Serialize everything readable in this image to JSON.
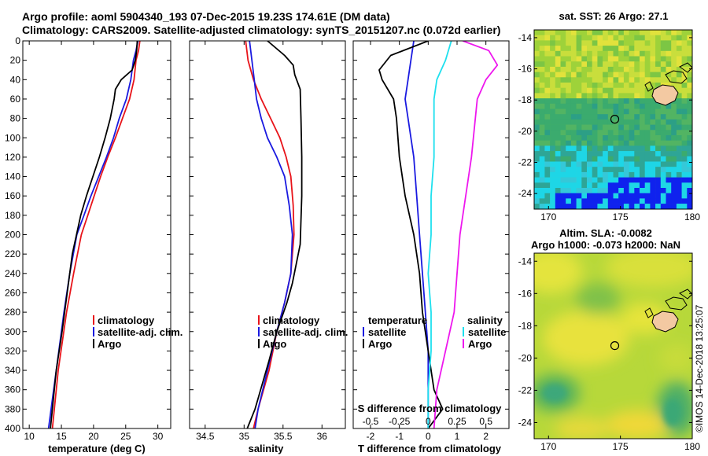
{
  "header": {
    "title_line1": "Argo profile: aoml 5904340_193 07-Dec-2015 19.23S 174.61E (DM data)",
    "title_line2": "Climatology: CARS2009. Satellite-adjusted climatology: synTS_20151207.nc (0.072d earlier)"
  },
  "colors": {
    "climatology": "#e8141a",
    "satellite": "#1a1ae0",
    "argo": "#000000",
    "s_climatology": "#ee17ee",
    "s_satellite": "#1ee0ee"
  },
  "chart_data": [
    {
      "type": "line",
      "id": "temperature",
      "xlabel": "temperature (deg C)",
      "ylabel": "",
      "xlim": [
        9,
        32
      ],
      "ylim": [
        400,
        0
      ],
      "xticks": [
        10,
        15,
        20,
        25,
        30
      ],
      "yticks": [
        0,
        20,
        40,
        60,
        80,
        100,
        120,
        140,
        160,
        180,
        200,
        220,
        240,
        260,
        280,
        300,
        320,
        340,
        360,
        380,
        400
      ],
      "legend": [
        "climatology",
        "satellite-adj. clim.",
        "Argo"
      ],
      "legend_position": "lower-right",
      "series": [
        {
          "name": "climatology",
          "x": [
            27.2,
            27.0,
            26.6,
            26.3,
            25.6,
            24.5,
            23.4,
            22.2,
            21.1,
            20.1,
            19.1,
            18.1,
            16.9,
            15.8,
            14.5,
            13.6
          ],
          "y": [
            0,
            10,
            20,
            40,
            60,
            80,
            100,
            120,
            140,
            160,
            180,
            200,
            240,
            280,
            340,
            400
          ]
        },
        {
          "name": "satellite-adj. clim.",
          "x": [
            26.9,
            26.6,
            26.2,
            25.8,
            25.1,
            24.0,
            23.1,
            22.0,
            20.8,
            19.6,
            18.5,
            17.4,
            16.3,
            15.4,
            14.6,
            13.8,
            13.0
          ],
          "y": [
            0,
            10,
            20,
            40,
            60,
            80,
            100,
            120,
            140,
            160,
            180,
            200,
            240,
            280,
            320,
            360,
            400
          ]
        },
        {
          "name": "Argo",
          "x": [
            26.8,
            26.7,
            26.5,
            26.0,
            24.3,
            23.4,
            23.2,
            22.6,
            21.8,
            20.9,
            19.9,
            18.9,
            18.0,
            16.7,
            15.9,
            15.1,
            14.2,
            13.3
          ],
          "y": [
            0,
            10,
            20,
            30,
            40,
            50,
            60,
            80,
            100,
            120,
            140,
            160,
            180,
            220,
            260,
            300,
            340,
            400
          ]
        }
      ]
    },
    {
      "type": "line",
      "id": "salinity",
      "xlabel": "salinity",
      "ylabel": "",
      "xlim": [
        34.3,
        36.3
      ],
      "ylim": [
        400,
        0
      ],
      "xticks": [
        34.5,
        35,
        35.5,
        36
      ],
      "xtick_labels": [
        "34.5",
        "35",
        "35.5",
        "36"
      ],
      "legend": [
        "climatology",
        "satellite-adj. clim.",
        "Argo"
      ],
      "legend_position": "lower-right",
      "series": [
        {
          "name": "climatology",
          "x": [
            35.02,
            35.05,
            35.12,
            35.22,
            35.34,
            35.46,
            35.54,
            35.6,
            35.63,
            35.64,
            35.6,
            35.52,
            35.42,
            35.32,
            35.18,
            35.12
          ],
          "y": [
            0,
            20,
            40,
            60,
            80,
            100,
            120,
            140,
            170,
            200,
            240,
            270,
            300,
            340,
            380,
            400
          ]
        },
        {
          "name": "satellite-adj. clim.",
          "x": [
            35.07,
            35.1,
            35.13,
            35.16,
            35.22,
            35.3,
            35.42,
            35.52,
            35.58,
            35.62,
            35.6,
            35.52,
            35.42,
            35.3,
            35.18,
            35.14
          ],
          "y": [
            0,
            20,
            40,
            60,
            80,
            100,
            120,
            140,
            170,
            200,
            240,
            270,
            300,
            340,
            380,
            400
          ]
        },
        {
          "name": "Argo",
          "x": [
            35.3,
            35.52,
            35.63,
            35.65,
            35.72,
            35.73,
            35.74,
            35.74,
            35.72,
            35.62,
            35.55,
            35.42,
            35.32,
            35.14,
            35.04
          ],
          "y": [
            0,
            15,
            25,
            35,
            50,
            80,
            120,
            160,
            210,
            250,
            270,
            300,
            330,
            380,
            400
          ]
        }
      ]
    },
    {
      "type": "line",
      "id": "difference",
      "xlabel": "T difference from climatology",
      "s_axis_label": "S difference from climatology",
      "ylabel": "",
      "xlim": [
        -2.6,
        2.8
      ],
      "ylim": [
        400,
        0
      ],
      "xticks": [
        -2,
        -1,
        0,
        1,
        2
      ],
      "s_xticks": [
        -0.5,
        -0.25,
        0,
        0.25,
        0.5
      ],
      "s_xtick_labels": [
        "-0.5",
        "-0.25",
        "0",
        "0.25",
        "0.5"
      ],
      "legend_temperature_title": "temperature",
      "legend_salinity_title": "salinity",
      "legend_temperature": [
        "satellite",
        "Argo"
      ],
      "legend_salinity": [
        "satellite",
        "Argo"
      ],
      "legend_position": "lower",
      "series": [
        {
          "name": "T satellite",
          "x": [
            -0.5,
            -0.6,
            -0.7,
            -0.8,
            -0.7,
            -0.5,
            -0.4,
            -0.3,
            -0.2,
            -0.1,
            0.0,
            0.0,
            0.0
          ],
          "y": [
            0,
            20,
            40,
            60,
            80,
            120,
            160,
            200,
            240,
            280,
            320,
            360,
            400
          ]
        },
        {
          "name": "T Argo",
          "x": [
            0.0,
            -1.3,
            -1.7,
            -1.6,
            -1.2,
            -1.1,
            -1.0,
            -0.8,
            -0.5,
            -0.3,
            -0.2,
            0.0,
            0.2,
            0.5,
            0.0
          ],
          "y": [
            0,
            15,
            30,
            40,
            60,
            80,
            120,
            160,
            200,
            240,
            280,
            320,
            360,
            380,
            400
          ]
        },
        {
          "name": "S satellite",
          "x": [
            0.8,
            0.6,
            0.3,
            0.2,
            0.2,
            0.2,
            0.1,
            0.1,
            0.0,
            0.1,
            0.1,
            0.0,
            0.0
          ],
          "y": [
            0,
            20,
            40,
            60,
            80,
            120,
            160,
            200,
            240,
            280,
            320,
            360,
            400
          ]
        },
        {
          "name": "S Argo",
          "x": [
            1.2,
            2.1,
            2.4,
            2.0,
            1.7,
            1.5,
            1.3,
            1.1,
            1.0,
            0.9,
            0.6,
            0.3,
            0.2
          ],
          "y": [
            0,
            10,
            25,
            40,
            60,
            120,
            160,
            200,
            240,
            280,
            320,
            360,
            400
          ]
        }
      ]
    },
    {
      "type": "heatmap",
      "id": "sst_map",
      "title": "sat. SST: 26 Argo: 27.1",
      "xlim": [
        169,
        180
      ],
      "ylim": [
        -25,
        -13.5
      ],
      "xticks": [
        170,
        175,
        180
      ],
      "yticks": [
        -14,
        -16,
        -18,
        -20,
        -22,
        -24
      ],
      "argo_position": [
        174.61,
        -19.23
      ]
    },
    {
      "type": "heatmap",
      "id": "sla_map",
      "title_line1": "Altim. SLA: -0.0082",
      "title_line2": "Argo h1000: -0.073 h2000: NaN",
      "xlim": [
        169,
        180
      ],
      "ylim": [
        -25,
        -13.5
      ],
      "xticks": [
        170,
        175,
        180
      ],
      "yticks": [
        -14,
        -16,
        -18,
        -20,
        -22,
        -24
      ],
      "argo_position": [
        174.61,
        -19.23
      ]
    }
  ],
  "footer": {
    "watermark": "©IMOS 14-Dec-2018 13:25:07"
  }
}
